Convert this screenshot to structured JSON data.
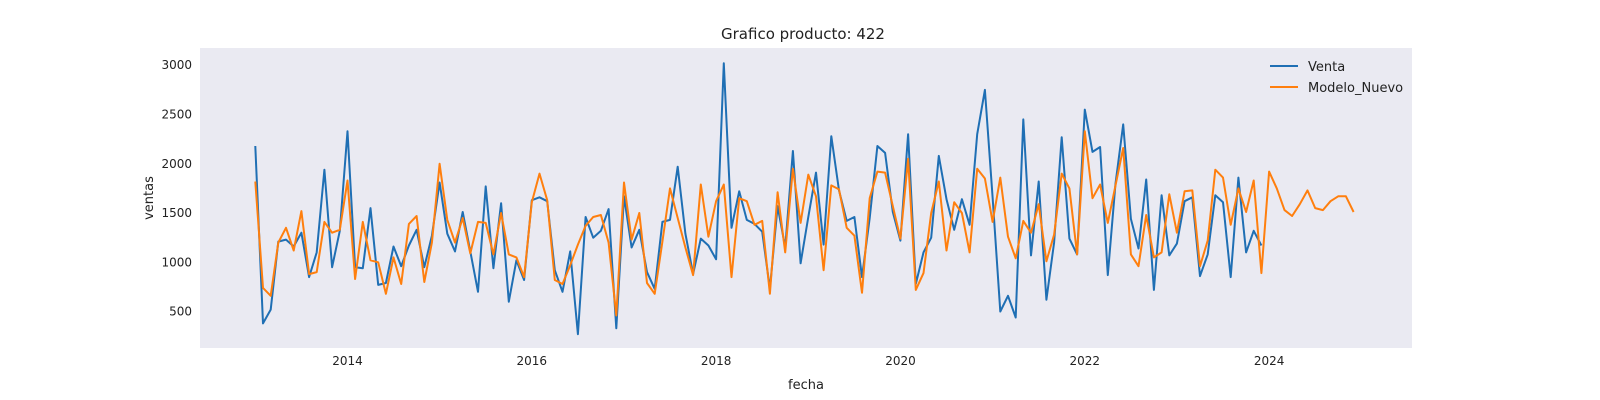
{
  "chart_data": {
    "type": "line",
    "title": "Grafico producto: 422",
    "xlabel": "fecha",
    "ylabel": "ventas",
    "xlim": [
      2012.4,
      2025.55
    ],
    "ylim": [
      130,
      3175
    ],
    "xticks": [
      2014,
      2016,
      2018,
      2020,
      2022,
      2024
    ],
    "xtick_labels": [
      "2014",
      "2016",
      "2018",
      "2020",
      "2022",
      "2024"
    ],
    "yticks": [
      500,
      1000,
      1500,
      2000,
      2500,
      3000
    ],
    "ytick_labels": [
      "500",
      "1000",
      "1500",
      "2000",
      "2500",
      "3000"
    ],
    "grid": false,
    "legend": "top-right",
    "background": "#eaeaf2",
    "series": [
      {
        "name": "Venta",
        "color": "#1f6fb4",
        "x_start": 2013.0,
        "x_step": 0.08333,
        "values": [
          2180,
          380,
          520,
          1210,
          1230,
          1160,
          1300,
          850,
          1100,
          1940,
          950,
          1320,
          2330,
          950,
          940,
          1550,
          770,
          790,
          1160,
          960,
          1170,
          1330,
          950,
          1270,
          1810,
          1290,
          1110,
          1510,
          1110,
          700,
          1770,
          940,
          1600,
          600,
          1020,
          820,
          1630,
          1660,
          1620,
          920,
          700,
          1110,
          270,
          1460,
          1250,
          1320,
          1540,
          330,
          1670,
          1150,
          1330,
          900,
          730,
          1410,
          1430,
          1970,
          1290,
          880,
          1240,
          1170,
          1030,
          3020,
          1350,
          1720,
          1430,
          1390,
          1310,
          730,
          1570,
          1150,
          2130,
          990,
          1460,
          1910,
          1180,
          2280,
          1730,
          1420,
          1460,
          850,
          1450,
          2180,
          2110,
          1510,
          1220,
          2300,
          780,
          1100,
          1250,
          2080,
          1640,
          1330,
          1640,
          1380,
          2300,
          2750,
          1660,
          500,
          660,
          440,
          2450,
          1070,
          1820,
          620,
          1200,
          2270,
          1240,
          1080,
          2550,
          2120,
          2170,
          870,
          1800,
          2400,
          1440,
          1140,
          1840,
          720,
          1680,
          1070,
          1190,
          1620,
          1660,
          860,
          1080,
          1680,
          1610,
          850,
          1860,
          1100,
          1320,
          1170
        ]
      },
      {
        "name": "Modelo_Nuevo",
        "color": "#ff7f0e",
        "x_start": 2013.0,
        "x_step": 0.08333,
        "values": [
          1820,
          740,
          660,
          1200,
          1350,
          1120,
          1520,
          880,
          900,
          1410,
          1300,
          1330,
          1830,
          830,
          1410,
          1020,
          1000,
          680,
          1050,
          780,
          1390,
          1470,
          800,
          1200,
          2000,
          1430,
          1200,
          1450,
          1090,
          1410,
          1400,
          1080,
          1500,
          1080,
          1050,
          850,
          1610,
          1900,
          1630,
          820,
          780,
          970,
          1180,
          1370,
          1460,
          1480,
          1200,
          460,
          1810,
          1230,
          1500,
          790,
          680,
          1210,
          1750,
          1450,
          1150,
          870,
          1790,
          1260,
          1620,
          1790,
          850,
          1650,
          1620,
          1380,
          1420,
          680,
          1710,
          1100,
          1950,
          1400,
          1890,
          1670,
          920,
          1780,
          1740,
          1350,
          1270,
          690,
          1650,
          1920,
          1910,
          1570,
          1240,
          2050,
          720,
          890,
          1500,
          1820,
          1120,
          1610,
          1500,
          1100,
          1950,
          1850,
          1410,
          1860,
          1260,
          1040,
          1420,
          1300,
          1590,
          1010,
          1280,
          1900,
          1750,
          1080,
          2330,
          1650,
          1790,
          1400,
          1780,
          2160,
          1080,
          960,
          1480,
          1050,
          1100,
          1690,
          1300,
          1720,
          1730,
          960,
          1220,
          1940,
          1860,
          1380,
          1750,
          1510,
          1830,
          890,
          1920,
          1750,
          1530,
          1470,
          1590,
          1730,
          1550,
          1530,
          1620,
          1670,
          1670,
          1510
        ]
      }
    ]
  }
}
